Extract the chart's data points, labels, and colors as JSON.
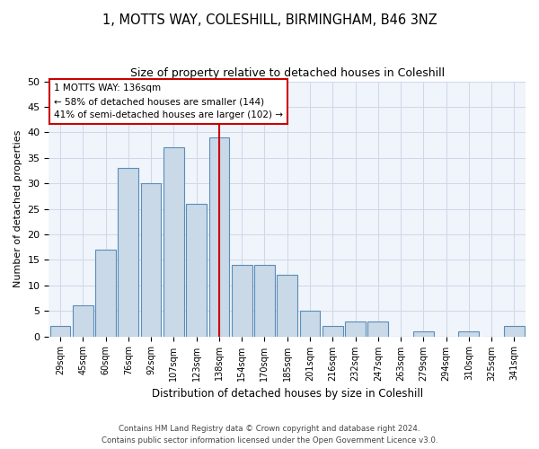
{
  "title1": "1, MOTTS WAY, COLESHILL, BIRMINGHAM, B46 3NZ",
  "title2": "Size of property relative to detached houses in Coleshill",
  "xlabel": "Distribution of detached houses by size in Coleshill",
  "ylabel": "Number of detached properties",
  "categories": [
    "29sqm",
    "45sqm",
    "60sqm",
    "76sqm",
    "92sqm",
    "107sqm",
    "123sqm",
    "138sqm",
    "154sqm",
    "170sqm",
    "185sqm",
    "201sqm",
    "216sqm",
    "232sqm",
    "247sqm",
    "263sqm",
    "279sqm",
    "294sqm",
    "310sqm",
    "325sqm",
    "341sqm"
  ],
  "values": [
    2,
    6,
    17,
    33,
    30,
    37,
    26,
    39,
    14,
    14,
    12,
    5,
    2,
    3,
    3,
    0,
    1,
    0,
    1,
    0,
    2
  ],
  "bar_color": "#c9d9e8",
  "bar_edge_color": "#5b8db8",
  "marker_index": 7,
  "marker_label": "1 MOTTS WAY: 136sqm",
  "annotation_line1": "← 58% of detached houses are smaller (144)",
  "annotation_line2": "41% of semi-detached houses are larger (102) →",
  "marker_color": "#cc0000",
  "ylim": [
    0,
    50
  ],
  "yticks": [
    0,
    5,
    10,
    15,
    20,
    25,
    30,
    35,
    40,
    45,
    50
  ],
  "grid_color": "#d0d8e8",
  "background_color": "#f0f4fb",
  "footer1": "Contains HM Land Registry data © Crown copyright and database right 2024.",
  "footer2": "Contains public sector information licensed under the Open Government Licence v3.0."
}
